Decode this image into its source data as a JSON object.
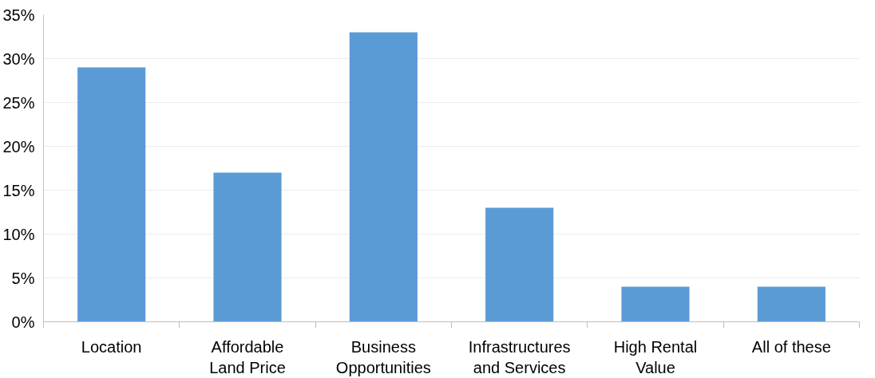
{
  "chart_data": {
    "type": "bar",
    "categories": [
      "Location",
      "Affordable Land Price",
      "Business Opportunities",
      "Infrastructures and Services",
      "High Rental Value",
      "All of these"
    ],
    "values": [
      29,
      17,
      33,
      13,
      4,
      4
    ],
    "color": "#5b9bd5",
    "ylim": [
      0,
      35
    ],
    "yticks": [
      {
        "value": 0,
        "label": "0%"
      },
      {
        "value": 5,
        "label": "5%"
      },
      {
        "value": 10,
        "label": "10%"
      },
      {
        "value": 15,
        "label": "15%"
      },
      {
        "value": 20,
        "label": "20%"
      },
      {
        "value": 25,
        "label": "25%"
      },
      {
        "value": 30,
        "label": "30%"
      },
      {
        "value": 35,
        "label": "35%"
      }
    ],
    "grid": "y"
  }
}
